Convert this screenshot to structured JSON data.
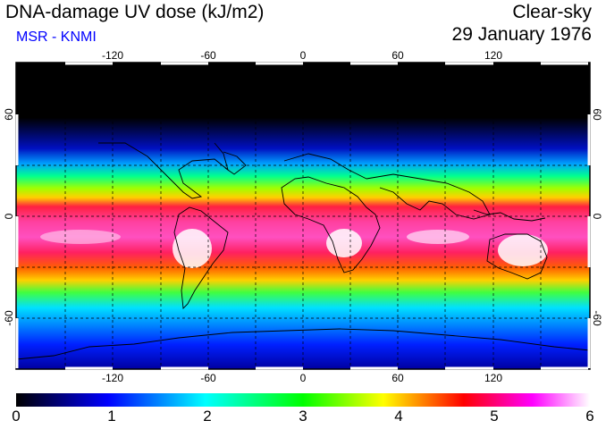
{
  "header": {
    "title": "DNA-damage UV dose (kJ/m2)",
    "subtitle": "MSR - KNMI",
    "condition": "Clear-sky",
    "date": "29 January 1976"
  },
  "map": {
    "projection": "equirectangular",
    "lon_ticks": [
      "-120",
      "-60",
      "0",
      "60",
      "120"
    ],
    "lat_ticks": [
      "60",
      "0",
      "-60"
    ],
    "gridlines": "dashed",
    "coastlines": true
  },
  "colorbar": {
    "min": 0,
    "max": 6,
    "labels": [
      "0",
      "1",
      "2",
      "3",
      "4",
      "5",
      "6"
    ],
    "colors": [
      "#000000",
      "#0000ff",
      "#00ffff",
      "#00ff00",
      "#ffff00",
      "#ff0000",
      "#ff00ff",
      "#ffffff"
    ]
  },
  "legend_colors": {
    "title_color": "#000000",
    "subtitle_color": "#0000ff"
  }
}
